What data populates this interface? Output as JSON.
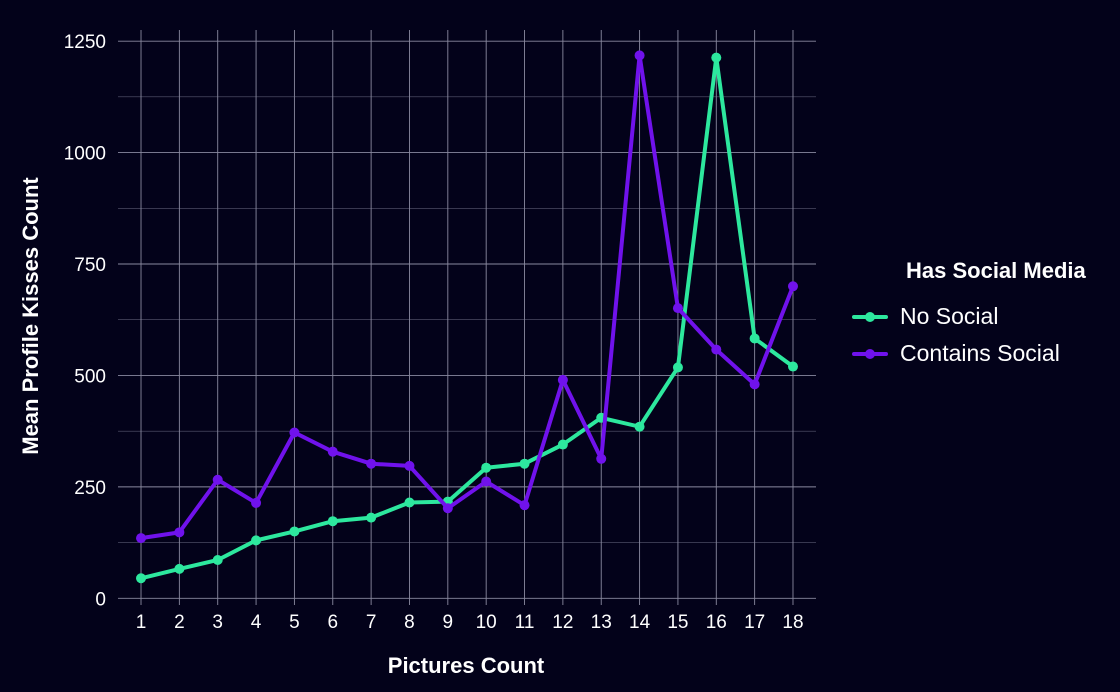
{
  "chart_data": {
    "type": "line",
    "title": "",
    "xlabel": "Pictures Count",
    "ylabel": "Mean Profile Kisses Count",
    "x": [
      1,
      2,
      3,
      4,
      5,
      6,
      7,
      8,
      9,
      10,
      11,
      12,
      13,
      14,
      15,
      16,
      17,
      18
    ],
    "x_ticks": [
      "1",
      "2",
      "3",
      "4",
      "5",
      "6",
      "7",
      "8",
      "9",
      "10",
      "11",
      "12",
      "13",
      "14",
      "15",
      "16",
      "17",
      "18"
    ],
    "y_ticks": [
      "0",
      "250",
      "500",
      "750",
      "1000",
      "1250"
    ],
    "xlim": [
      0.4,
      18.6
    ],
    "ylim": [
      -15,
      1275
    ],
    "grid": true,
    "legend": {
      "title": "Has Social Media",
      "position": "right"
    },
    "series": [
      {
        "name": "No Social",
        "color": "#2de89e",
        "values": [
          45,
          66,
          86,
          130,
          150,
          173,
          181,
          215,
          217,
          293,
          302,
          345,
          405,
          385,
          518,
          1213,
          583,
          520
        ]
      },
      {
        "name": "Contains Social",
        "color": "#7012ec",
        "values": [
          135,
          148,
          266,
          214,
          372,
          329,
          302,
          297,
          202,
          262,
          209,
          490,
          313,
          1218,
          651,
          558,
          480,
          700
        ]
      }
    ]
  }
}
